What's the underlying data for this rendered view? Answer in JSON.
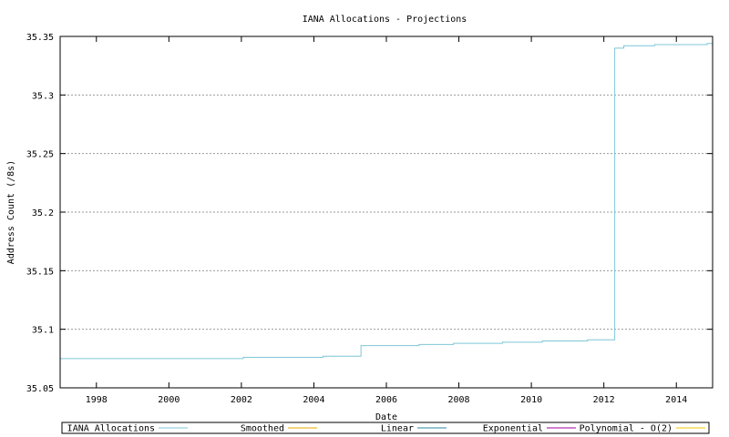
{
  "chart_data": {
    "type": "line",
    "title": "IANA Allocations - Projections",
    "xlabel": "Date",
    "ylabel": "Address Count (/8s)",
    "xlim": [
      1997,
      2015
    ],
    "ylim": [
      35.05,
      35.35
    ],
    "xticks": [
      "1998",
      "2000",
      "2002",
      "2004",
      "2006",
      "2008",
      "2010",
      "2012",
      "2014"
    ],
    "yticks": [
      "35.05",
      "35.1",
      "35.15",
      "35.2",
      "35.25",
      "35.3",
      "35.35"
    ],
    "grid": true,
    "legend_position": "bottom",
    "series": [
      {
        "name": "IANA Allocations",
        "color": "#7fc6d8",
        "step": true,
        "x": [
          1997.0,
          2002.05,
          2004.25,
          2005.3,
          2006.9,
          2007.85,
          2009.2,
          2010.3,
          2011.55,
          2012.3,
          2012.55,
          2013.4,
          2014.85,
          2015.0
        ],
        "y": [
          35.075,
          35.076,
          35.077,
          35.086,
          35.087,
          35.088,
          35.089,
          35.09,
          35.091,
          35.34,
          35.342,
          35.343,
          35.344,
          35.344
        ]
      },
      {
        "name": "Smoothed",
        "color": "#e8a800",
        "x": [],
        "y": []
      },
      {
        "name": "Linear",
        "color": "#2a8aa0",
        "x": [],
        "y": []
      },
      {
        "name": "Exponential",
        "color": "#a000a0",
        "x": [],
        "y": []
      },
      {
        "name": "Polynomial - O(2)",
        "color": "#f0c800",
        "x": [],
        "y": []
      }
    ]
  }
}
